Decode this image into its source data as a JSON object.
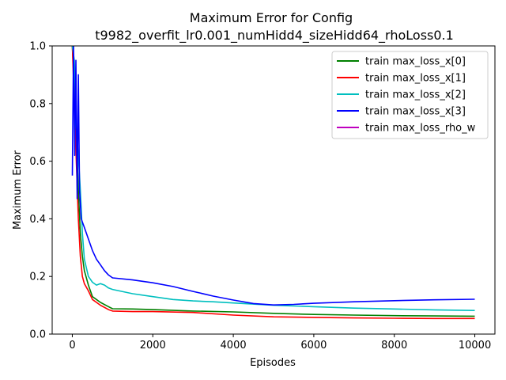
{
  "chart_data": {
    "type": "line",
    "title": "Maximum Error for Config",
    "subtitle": "t9982_overfit_lr0.001_numHidd4_sizeHidd64_rhoLoss0.1",
    "xlabel": "Episodes",
    "ylabel": "Maximum Error",
    "xlim": [
      -500,
      10500
    ],
    "ylim": [
      0.0,
      1.0
    ],
    "xticks": [
      0,
      2000,
      4000,
      6000,
      8000,
      10000
    ],
    "xtick_labels": [
      "0",
      "2000",
      "4000",
      "6000",
      "8000",
      "10000"
    ],
    "yticks": [
      0.0,
      0.2,
      0.4,
      0.6,
      0.8,
      1.0
    ],
    "ytick_labels": [
      "0.0",
      "0.2",
      "0.4",
      "0.6",
      "0.8",
      "1.0"
    ],
    "grid": false,
    "legend_position": "top-right",
    "series": [
      {
        "name": "train max_loss_x[0]",
        "color": "#008000",
        "x": [
          0,
          50,
          100,
          150,
          200,
          250,
          300,
          400,
          500,
          700,
          900,
          1000,
          1500,
          2000,
          3000,
          4000,
          5000,
          6000,
          7000,
          8000,
          9000,
          10000
        ],
        "y": [
          1.0,
          0.85,
          0.7,
          0.5,
          0.35,
          0.27,
          0.22,
          0.17,
          0.13,
          0.11,
          0.095,
          0.088,
          0.087,
          0.085,
          0.08,
          0.077,
          0.072,
          0.068,
          0.066,
          0.064,
          0.063,
          0.062
        ]
      },
      {
        "name": "train max_loss_x[1]",
        "color": "#ff0000",
        "x": [
          0,
          50,
          100,
          150,
          200,
          250,
          300,
          400,
          500,
          700,
          900,
          1000,
          1500,
          2000,
          3000,
          4000,
          5000,
          6000,
          7000,
          8000,
          9000,
          10000
        ],
        "y": [
          1.0,
          0.8,
          0.6,
          0.4,
          0.27,
          0.2,
          0.175,
          0.15,
          0.12,
          0.1,
          0.085,
          0.08,
          0.078,
          0.078,
          0.075,
          0.066,
          0.06,
          0.058,
          0.056,
          0.055,
          0.054,
          0.054
        ]
      },
      {
        "name": "train max_loss_x[2]",
        "color": "#00bfbf",
        "x": [
          0,
          50,
          100,
          150,
          200,
          250,
          300,
          400,
          500,
          600,
          700,
          800,
          900,
          1000,
          1500,
          2000,
          2500,
          3000,
          3500,
          4000,
          5000,
          6000,
          7000,
          8000,
          9000,
          10000
        ],
        "y": [
          1.0,
          0.95,
          0.72,
          0.62,
          0.5,
          0.35,
          0.26,
          0.2,
          0.18,
          0.17,
          0.175,
          0.17,
          0.16,
          0.155,
          0.14,
          0.13,
          0.12,
          0.115,
          0.112,
          0.108,
          0.1,
          0.095,
          0.09,
          0.087,
          0.084,
          0.082
        ]
      },
      {
        "name": "train max_loss_x[3]",
        "color": "#0000ff",
        "x": [
          0,
          30,
          60,
          90,
          120,
          150,
          180,
          220,
          300,
          400,
          500,
          600,
          700,
          800,
          900,
          1000,
          1500,
          2000,
          2500,
          3000,
          3500,
          4000,
          4500,
          5000,
          5500,
          6000,
          7000,
          8000,
          9000,
          10000
        ],
        "y": [
          0.55,
          1.0,
          0.62,
          0.95,
          0.47,
          0.9,
          0.5,
          0.4,
          0.37,
          0.33,
          0.29,
          0.26,
          0.24,
          0.22,
          0.205,
          0.195,
          0.188,
          0.178,
          0.165,
          0.148,
          0.132,
          0.118,
          0.106,
          0.101,
          0.103,
          0.107,
          0.112,
          0.116,
          0.119,
          0.121
        ]
      },
      {
        "name": "train max_loss_rho_w",
        "color": "#bf00bf",
        "x": [],
        "y": []
      }
    ]
  }
}
